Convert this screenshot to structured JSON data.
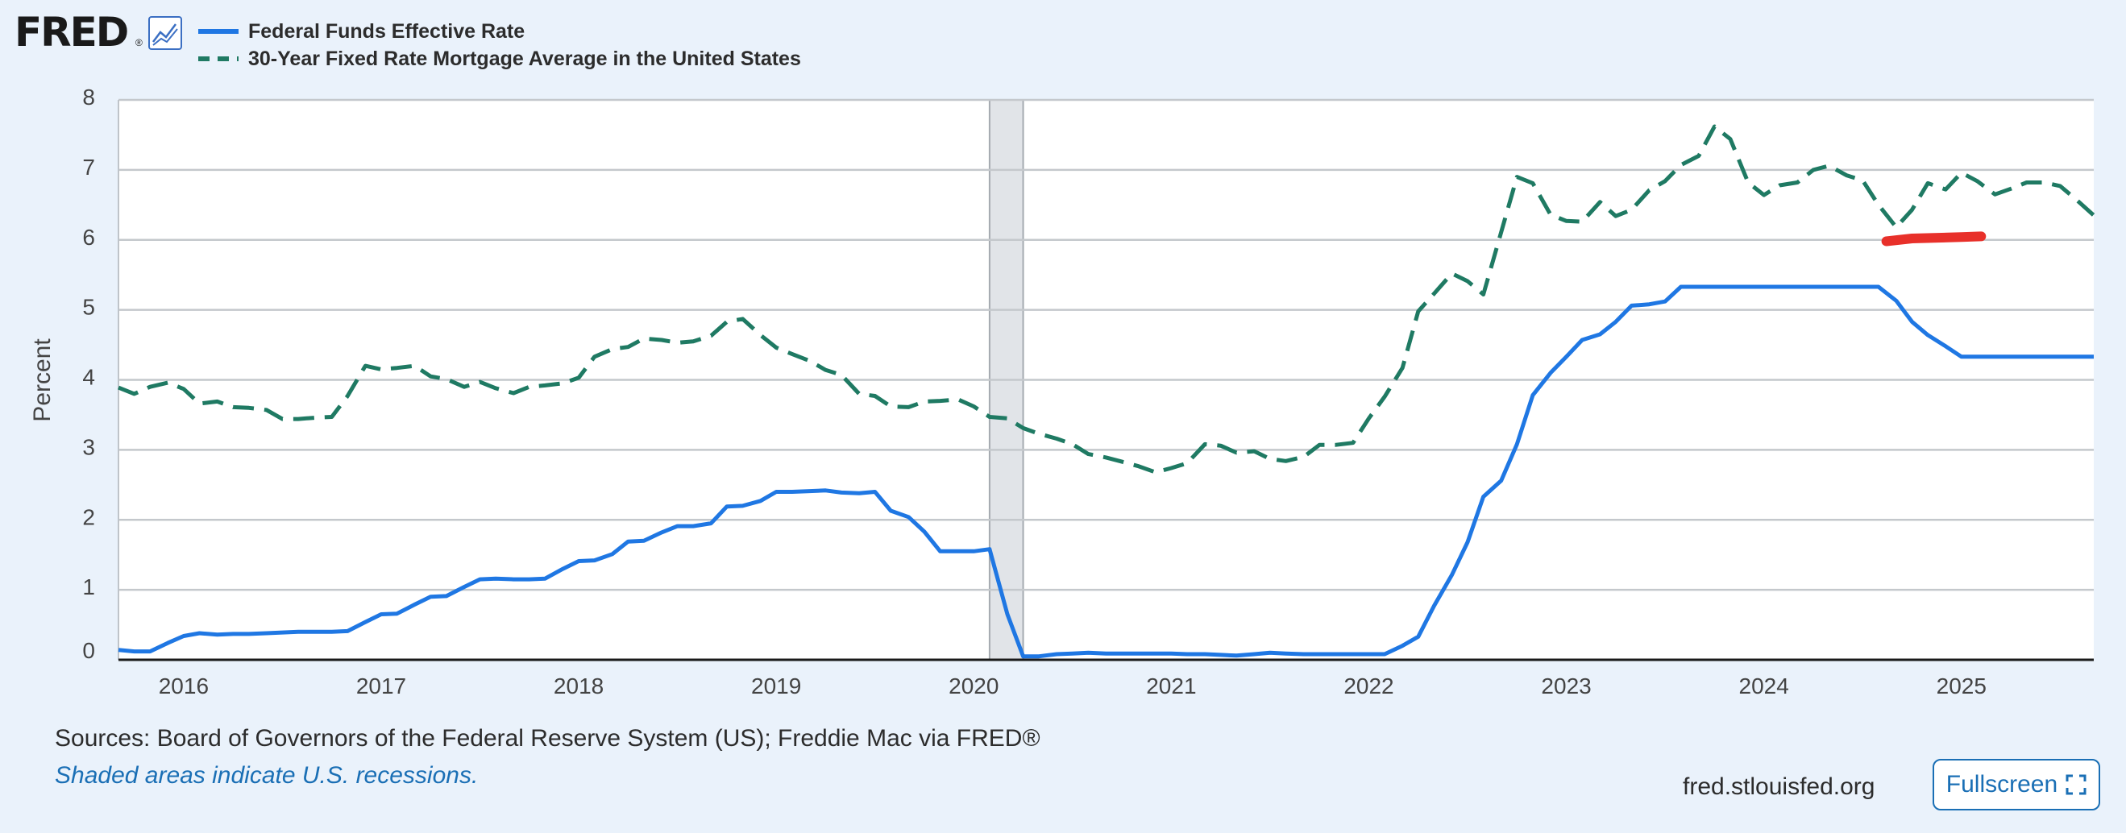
{
  "branding": {
    "logo_text": "FRED",
    "logo_mark": "®",
    "icon": "line-chart-icon"
  },
  "legend": [
    {
      "label": "Federal Funds Effective Rate",
      "color": "#1f77e3",
      "style": "solid"
    },
    {
      "label": "30-Year Fixed Rate Mortgage Average in the United States",
      "color": "#1f7a63",
      "style": "dashed"
    }
  ],
  "footer": {
    "sources": "Sources: Board of Governors of the Federal Reserve System (US); Freddie Mac via FRED®",
    "recession_note": "Shaded areas indicate U.S. recessions.",
    "site": "fred.stlouisfed.org",
    "fullscreen_label": "Fullscreen",
    "fullscreen_icon": "expand-icon"
  },
  "chart_data": {
    "type": "line",
    "title": "",
    "xlabel": "",
    "ylabel": "Percent",
    "ylim": [
      0,
      8
    ],
    "y_ticks": [
      0,
      1,
      2,
      3,
      4,
      5,
      6,
      7,
      8
    ],
    "xlim": [
      2015.67,
      2025.67
    ],
    "x_ticks": [
      "2016",
      "2017",
      "2018",
      "2019",
      "2020",
      "2021",
      "2022",
      "2023",
      "2024",
      "2025"
    ],
    "grid": true,
    "legend_position": "top-left",
    "recession_shading": [
      [
        2020.08,
        2020.25
      ]
    ],
    "annotations": [
      {
        "type": "freehand-stroke",
        "color": "#e8302a",
        "x": [
          2024.62,
          2024.75,
          2025.0,
          2025.1
        ],
        "y": [
          5.98,
          6.02,
          6.04,
          6.05
        ]
      }
    ],
    "series": [
      {
        "name": "Federal Funds Effective Rate",
        "color": "#1f77e3",
        "style": "solid",
        "x": [
          2015.67,
          2015.75,
          2015.83,
          2015.92,
          2016.0,
          2016.08,
          2016.17,
          2016.25,
          2016.33,
          2016.42,
          2016.5,
          2016.58,
          2016.67,
          2016.75,
          2016.83,
          2016.92,
          2017.0,
          2017.08,
          2017.17,
          2017.25,
          2017.33,
          2017.42,
          2017.5,
          2017.58,
          2017.67,
          2017.75,
          2017.83,
          2017.92,
          2018.0,
          2018.08,
          2018.17,
          2018.25,
          2018.33,
          2018.42,
          2018.5,
          2018.58,
          2018.67,
          2018.75,
          2018.83,
          2018.92,
          2019.0,
          2019.08,
          2019.17,
          2019.25,
          2019.33,
          2019.42,
          2019.5,
          2019.58,
          2019.67,
          2019.75,
          2019.83,
          2019.92,
          2020.0,
          2020.08,
          2020.17,
          2020.25,
          2020.33,
          2020.42,
          2020.5,
          2020.58,
          2020.67,
          2020.75,
          2020.83,
          2020.92,
          2021.0,
          2021.08,
          2021.17,
          2021.25,
          2021.33,
          2021.42,
          2021.5,
          2021.58,
          2021.67,
          2021.75,
          2021.83,
          2021.92,
          2022.0,
          2022.08,
          2022.17,
          2022.25,
          2022.33,
          2022.42,
          2022.5,
          2022.58,
          2022.67,
          2022.75,
          2022.83,
          2022.92,
          2023.0,
          2023.08,
          2023.17,
          2023.25,
          2023.33,
          2023.42,
          2023.5,
          2023.58,
          2023.67,
          2024.58,
          2024.67,
          2024.75,
          2024.83,
          2024.92,
          2025.0,
          2025.67
        ],
        "y": [
          0.14,
          0.12,
          0.12,
          0.24,
          0.34,
          0.38,
          0.36,
          0.37,
          0.37,
          0.38,
          0.39,
          0.4,
          0.4,
          0.4,
          0.41,
          0.54,
          0.65,
          0.66,
          0.79,
          0.9,
          0.91,
          1.04,
          1.15,
          1.16,
          1.15,
          1.15,
          1.16,
          1.3,
          1.41,
          1.42,
          1.51,
          1.69,
          1.7,
          1.82,
          1.91,
          1.91,
          1.95,
          2.19,
          2.2,
          2.27,
          2.4,
          2.4,
          2.41,
          2.42,
          2.39,
          2.38,
          2.4,
          2.13,
          2.04,
          1.83,
          1.55,
          1.55,
          1.55,
          1.58,
          0.65,
          0.05,
          0.05,
          0.08,
          0.09,
          0.1,
          0.09,
          0.09,
          0.09,
          0.09,
          0.09,
          0.08,
          0.08,
          0.07,
          0.06,
          0.08,
          0.1,
          0.09,
          0.08,
          0.08,
          0.08,
          0.08,
          0.08,
          0.08,
          0.2,
          0.33,
          0.77,
          1.21,
          1.68,
          2.33,
          2.56,
          3.08,
          3.78,
          4.1,
          4.33,
          4.57,
          4.65,
          4.83,
          5.06,
          5.08,
          5.12,
          5.33,
          5.33,
          5.33,
          5.13,
          4.83,
          4.64,
          4.48,
          4.33,
          4.33
        ]
      },
      {
        "name": "30-Year Fixed Rate Mortgage Average in the United States",
        "color": "#1f7a63",
        "style": "dashed",
        "x": [
          2015.67,
          2015.75,
          2015.83,
          2015.92,
          2016.0,
          2016.08,
          2016.17,
          2016.25,
          2016.33,
          2016.42,
          2016.5,
          2016.58,
          2016.67,
          2016.75,
          2016.83,
          2016.92,
          2017.0,
          2017.08,
          2017.17,
          2017.25,
          2017.33,
          2017.42,
          2017.5,
          2017.58,
          2017.67,
          2017.75,
          2017.83,
          2017.92,
          2018.0,
          2018.08,
          2018.17,
          2018.25,
          2018.33,
          2018.42,
          2018.5,
          2018.58,
          2018.67,
          2018.75,
          2018.83,
          2018.92,
          2019.0,
          2019.08,
          2019.17,
          2019.25,
          2019.33,
          2019.42,
          2019.5,
          2019.58,
          2019.67,
          2019.75,
          2019.83,
          2019.92,
          2020.0,
          2020.08,
          2020.17,
          2020.25,
          2020.33,
          2020.42,
          2020.5,
          2020.58,
          2020.67,
          2020.75,
          2020.83,
          2020.92,
          2021.0,
          2021.08,
          2021.17,
          2021.25,
          2021.33,
          2021.42,
          2021.5,
          2021.58,
          2021.67,
          2021.75,
          2021.83,
          2021.92,
          2022.0,
          2022.08,
          2022.17,
          2022.25,
          2022.33,
          2022.42,
          2022.5,
          2022.58,
          2022.67,
          2022.75,
          2022.83,
          2022.92,
          2023.0,
          2023.08,
          2023.17,
          2023.25,
          2023.33,
          2023.42,
          2023.5,
          2023.58,
          2023.67,
          2023.75,
          2023.83,
          2023.92,
          2024.0,
          2024.08,
          2024.17,
          2024.25,
          2024.33,
          2024.42,
          2024.5,
          2024.58,
          2024.67,
          2024.75,
          2024.83,
          2024.92,
          2025.0,
          2025.08,
          2025.17,
          2025.25,
          2025.33,
          2025.42,
          2025.5,
          2025.58,
          2025.67
        ],
        "y": [
          3.89,
          3.8,
          3.9,
          3.96,
          3.87,
          3.66,
          3.69,
          3.61,
          3.6,
          3.57,
          3.44,
          3.44,
          3.46,
          3.47,
          3.77,
          4.2,
          4.15,
          4.17,
          4.2,
          4.05,
          4.01,
          3.9,
          3.97,
          3.88,
          3.81,
          3.9,
          3.92,
          3.95,
          4.03,
          4.33,
          4.44,
          4.47,
          4.59,
          4.57,
          4.53,
          4.55,
          4.63,
          4.83,
          4.87,
          4.64,
          4.46,
          4.37,
          4.27,
          4.14,
          4.07,
          3.8,
          3.77,
          3.62,
          3.61,
          3.69,
          3.7,
          3.72,
          3.62,
          3.47,
          3.45,
          3.31,
          3.23,
          3.16,
          3.08,
          2.94,
          2.89,
          2.83,
          2.77,
          2.68,
          2.74,
          2.81,
          3.08,
          3.06,
          2.96,
          2.98,
          2.87,
          2.84,
          2.9,
          3.07,
          3.07,
          3.1,
          3.45,
          3.76,
          4.17,
          4.98,
          5.23,
          5.52,
          5.41,
          5.22,
          6.11,
          6.9,
          6.81,
          6.36,
          6.27,
          6.26,
          6.54,
          6.34,
          6.43,
          6.71,
          6.84,
          7.07,
          7.2,
          7.62,
          7.44,
          6.82,
          6.64,
          6.78,
          6.82,
          7.0,
          7.06,
          6.92,
          6.85,
          6.5,
          6.18,
          6.43,
          6.81,
          6.72,
          6.96,
          6.84,
          6.65,
          6.73,
          6.82,
          6.82,
          6.77,
          6.58,
          6.35
        ]
      }
    ]
  }
}
